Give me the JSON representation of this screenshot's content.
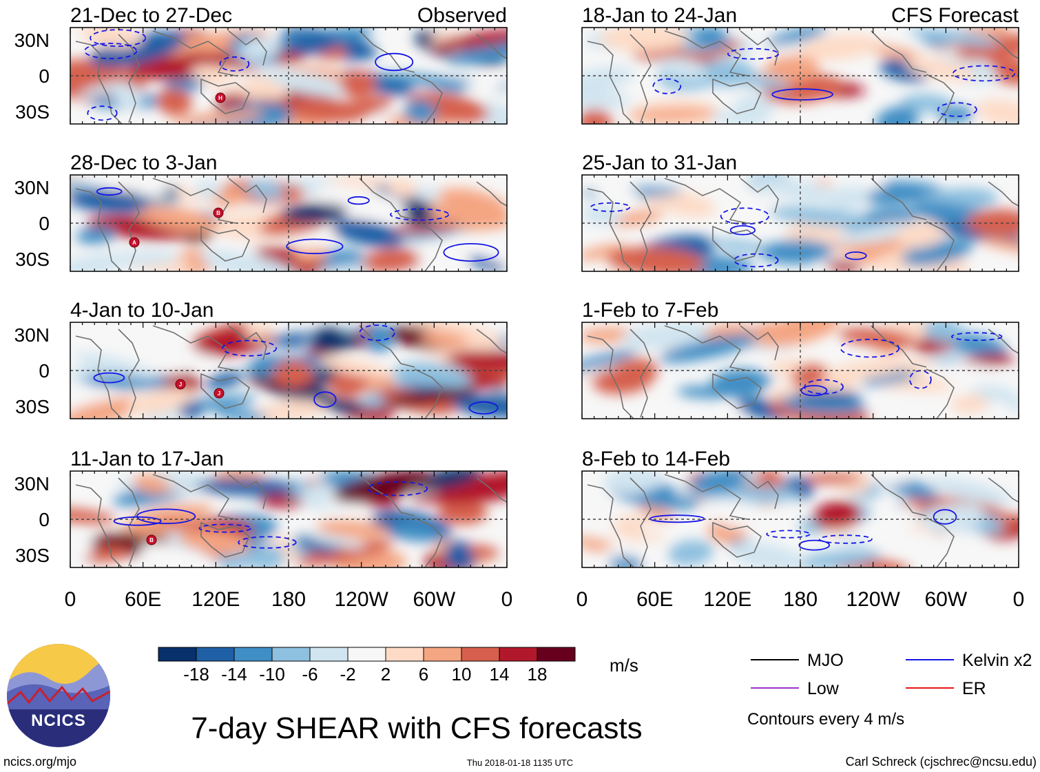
{
  "chart_data": {
    "type": "heatmap",
    "title": "7-day SHEAR with CFS forecasts",
    "units": "m/s",
    "column_labels": [
      "Observed",
      "CFS Forecast"
    ],
    "x_ticks": [
      "0",
      "60E",
      "120E",
      "180",
      "120W",
      "60W",
      "0"
    ],
    "y_ticks": [
      "30N",
      "0",
      "30S"
    ],
    "observed_panels": [
      "21-Dec to 27-Dec",
      "28-Dec to 3-Jan",
      "4-Jan to 10-Jan",
      "11-Jan to 17-Jan"
    ],
    "forecast_panels": [
      "18-Jan to 24-Jan",
      "25-Jan to 31-Jan",
      "1-Feb to 7-Feb",
      "8-Feb to 14-Feb"
    ],
    "colorbar": {
      "labels": [
        "-18",
        "-14",
        "-10",
        "-6",
        "-2",
        "2",
        "6",
        "10",
        "14",
        "18"
      ],
      "colors": [
        "#08306b",
        "#1f5fa6",
        "#3f8ec5",
        "#8ec0df",
        "#d1e5f0",
        "#f7f7f7",
        "#fddbc7",
        "#f4a582",
        "#d6604d",
        "#b2182b",
        "#67001f"
      ]
    },
    "legend": {
      "items": [
        {
          "label": "MJO",
          "color": "#000000"
        },
        {
          "label": "Kelvin x2",
          "color": "#1414e6"
        },
        {
          "label": "Low",
          "color": "#9932cc"
        },
        {
          "label": "ER",
          "color": "#e61414"
        }
      ],
      "note": "Contours every 4 m/s"
    }
  },
  "footer": {
    "logo_text": "NCICS",
    "left": "ncics.org/mjo",
    "center": "Thu 2018-01-18 1135 UTC",
    "right": "Carl Schreck (cjschrec@ncsu.edu)"
  },
  "storm_markers": [
    "H",
    "B",
    "A",
    "J",
    "J",
    "B"
  ]
}
